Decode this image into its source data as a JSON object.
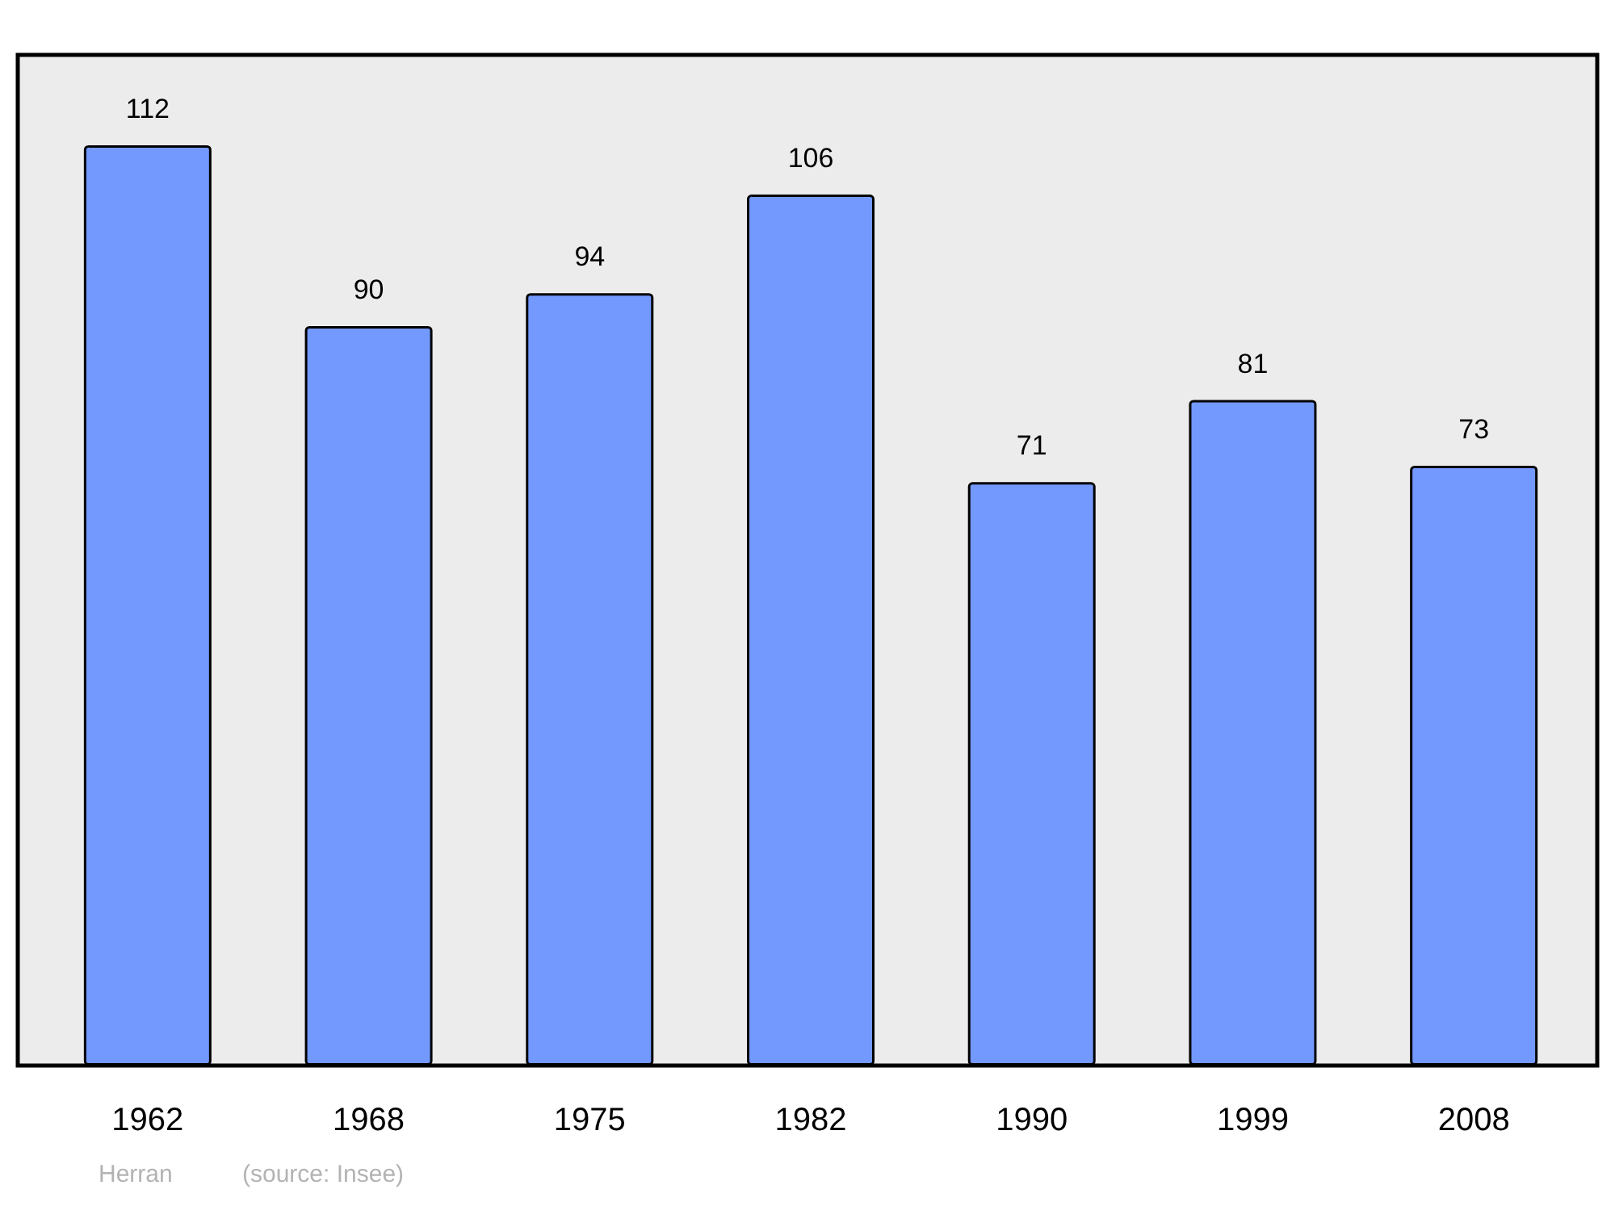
{
  "chart_data": {
    "type": "bar",
    "categories": [
      "1962",
      "1968",
      "1975",
      "1982",
      "1990",
      "1999",
      "2008"
    ],
    "values": [
      112,
      90,
      94,
      106,
      71,
      81,
      73
    ],
    "color": "#7399ff",
    "ylim": [
      0,
      123
    ],
    "data_labels": true,
    "annotations": [
      "Herran",
      "(source: Insee)"
    ]
  }
}
